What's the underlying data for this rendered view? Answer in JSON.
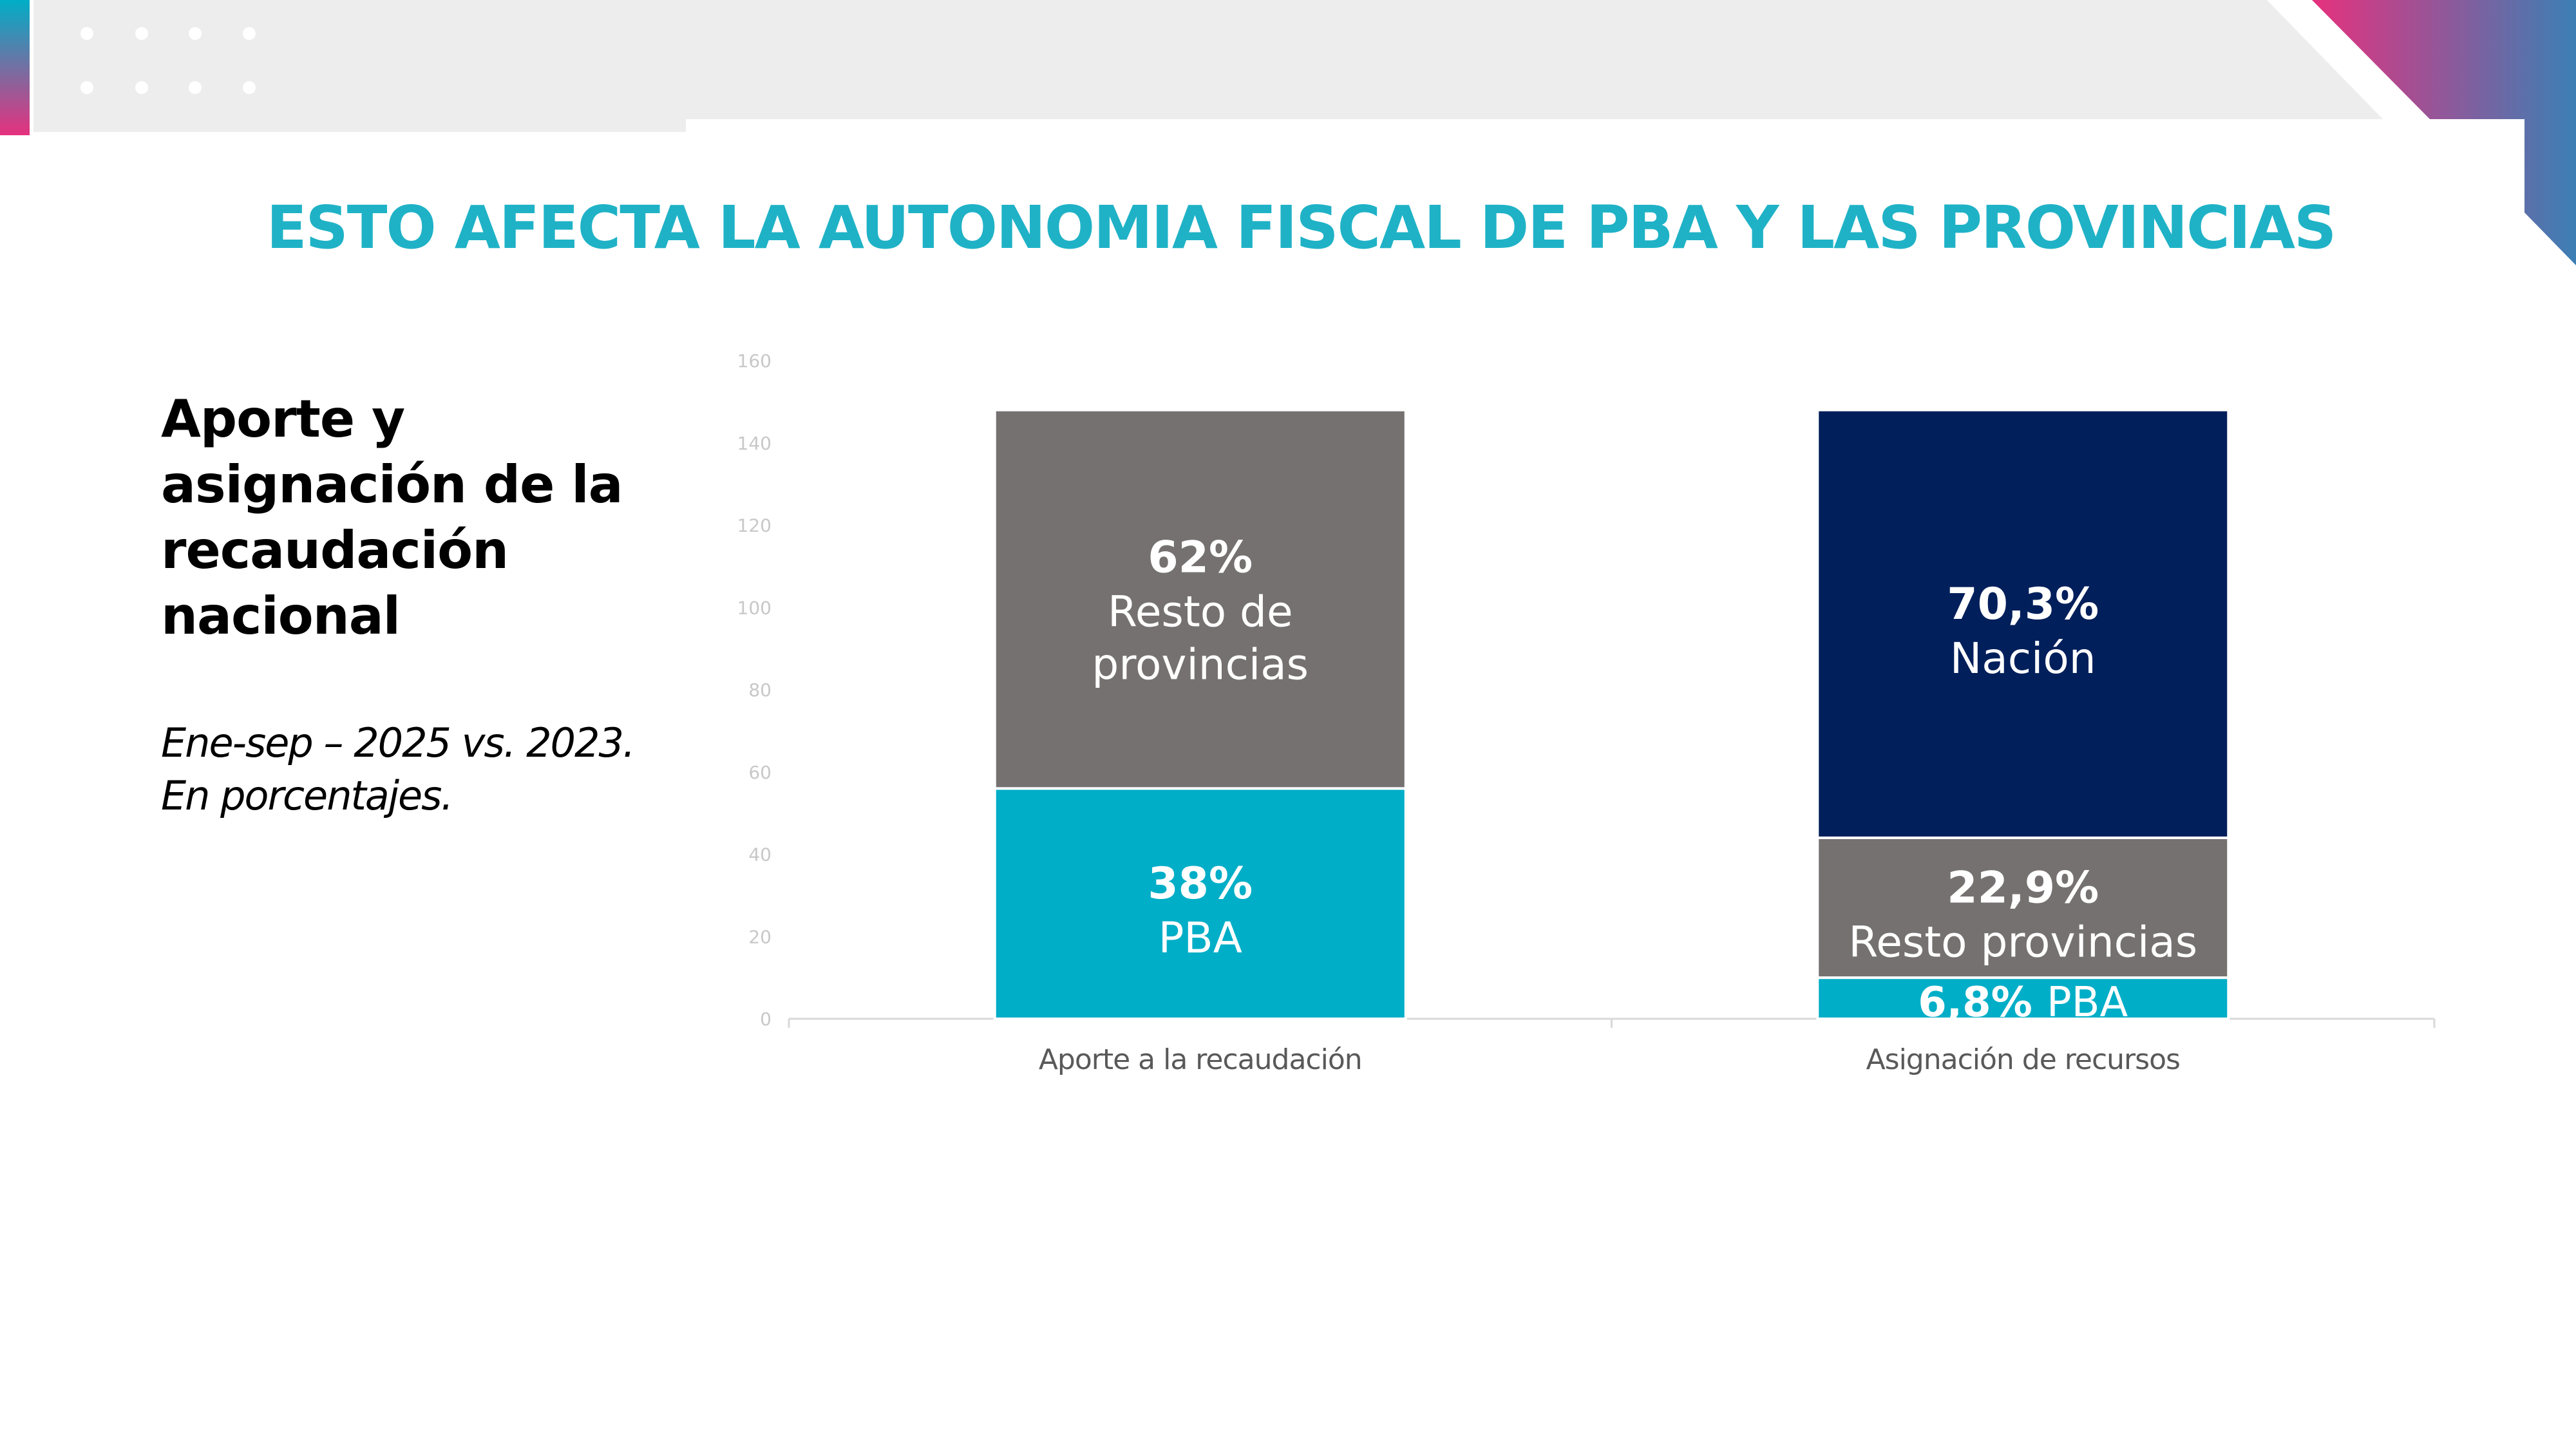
{
  "slide": {
    "title": "ESTO AFECTA LA AUTONOMIA FISCAL DE PBA Y LAS PROVINCIAS",
    "subtitle": "Aporte y asignación de la recaudación nacional",
    "note_line1": "Ene-sep – 2025 vs. 2023.",
    "note_line2": "En porcentajes."
  },
  "colors": {
    "title": "#1FB2C6",
    "pba": "#00AEC7",
    "resto": "#767171",
    "nacion": "#001F5B",
    "axis_text": "#C8C8C8",
    "category_text": "#595959",
    "background_band": "#EDEDED",
    "accent_pink": "#E6317E",
    "accent_teal": "#00AEC7"
  },
  "chart_data": {
    "type": "bar",
    "stacked": true,
    "title": "Aporte y asignación de la recaudación nacional",
    "categories": [
      "Aporte a la recaudación",
      "Asignación de recursos"
    ],
    "ylim": [
      0,
      160
    ],
    "yticks": [
      0,
      20,
      40,
      60,
      80,
      100,
      120,
      140,
      160
    ],
    "ytick_labels": [
      "0",
      "20",
      "40",
      "60",
      "80",
      "100",
      "120",
      "140",
      "160"
    ],
    "grid": false,
    "series": [
      {
        "name": "PBA",
        "color_key": "pba",
        "values": [
          56,
          10
        ],
        "labels": [
          {
            "pct": "38%",
            "name": "PBA"
          },
          {
            "pct": "6,8%",
            "name": "PBA"
          }
        ]
      },
      {
        "name": "Resto de provincias",
        "color_key": "resto",
        "values": [
          92,
          34
        ],
        "labels": [
          {
            "pct": "62%",
            "name1": "Resto de",
            "name2": "provincias"
          },
          {
            "pct": "22,9%",
            "name": "Resto provincias"
          }
        ]
      },
      {
        "name": "Nación",
        "color_key": "nacion",
        "values": [
          0,
          104
        ],
        "labels": [
          null,
          {
            "pct": "70,3%",
            "name": "Nación"
          }
        ]
      }
    ]
  }
}
